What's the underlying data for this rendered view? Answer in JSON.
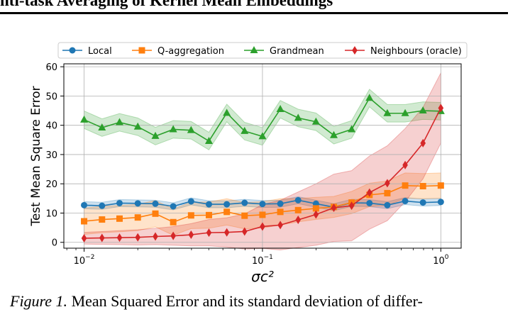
{
  "header": {
    "title": "nti-task Averaging of Kernel Mean Embeddings"
  },
  "caption": {
    "label": "Figure 1.",
    "text": "Mean Squared Error and its standard deviation of differ-"
  },
  "chart_data": {
    "type": "line",
    "title": "",
    "xlabel": "σc²",
    "ylabel": "Test Mean Square Error",
    "xscale": "log",
    "xlim": [
      0.0077,
      1.3
    ],
    "ylim": [
      -2,
      61
    ],
    "yticks": [
      0,
      10,
      20,
      30,
      40,
      50,
      60
    ],
    "xticks": [
      {
        "value": 0.01,
        "base": "10",
        "exp": "−2"
      },
      {
        "value": 0.1,
        "base": "10",
        "exp": "−1"
      },
      {
        "value": 1,
        "base": "10",
        "exp": "0"
      }
    ],
    "grid": true,
    "legend_position": "top",
    "x": [
      0.01,
      0.0126,
      0.0158,
      0.02,
      0.0251,
      0.0316,
      0.0398,
      0.0501,
      0.0631,
      0.0794,
      0.1,
      0.1259,
      0.1585,
      0.1995,
      0.2512,
      0.3162,
      0.3981,
      0.5012,
      0.631,
      0.7943,
      1.0
    ],
    "series": [
      {
        "name": "Local",
        "color": "#1f77b4",
        "marker": "circle",
        "values": [
          12.7,
          12.5,
          13.4,
          13.3,
          13.2,
          12.3,
          14.0,
          13.0,
          13.0,
          13.5,
          13.1,
          13.2,
          14.4,
          13.2,
          12.0,
          13.5,
          13.4,
          12.7,
          14.1,
          13.6,
          13.8
        ],
        "std": [
          1.2,
          1.2,
          1.2,
          1.2,
          1.2,
          1.2,
          1.2,
          1.2,
          1.2,
          1.2,
          1.2,
          1.2,
          1.2,
          1.2,
          1.2,
          1.2,
          1.2,
          1.2,
          1.2,
          1.2,
          1.2
        ]
      },
      {
        "name": "Q-aggregation",
        "color": "#ff7f0e",
        "marker": "square",
        "values": [
          7.2,
          7.8,
          8.1,
          8.5,
          9.8,
          6.9,
          9.2,
          9.3,
          10.4,
          9.1,
          9.4,
          10.4,
          11.0,
          11.6,
          12.1,
          13.6,
          16.2,
          16.8,
          19.4,
          19.2,
          19.4
        ],
        "std": [
          4.5,
          4.5,
          4.5,
          4.5,
          4.5,
          4.5,
          4.5,
          4.5,
          4.5,
          4.5,
          4.5,
          4.5,
          4.0,
          3.8,
          3.6,
          3.8,
          4.0,
          4.2,
          4.3,
          4.3,
          4.3
        ]
      },
      {
        "name": "Grandmean",
        "color": "#2ca02c",
        "marker": "triangle",
        "values": [
          41.9,
          39.2,
          41.0,
          39.5,
          36.3,
          38.6,
          38.3,
          34.6,
          44.2,
          38.0,
          36.2,
          45.5,
          42.5,
          41.2,
          36.6,
          38.6,
          49.3,
          44.1,
          44.1,
          45.0,
          44.8
        ],
        "std": [
          3.0,
          3.0,
          3.0,
          3.0,
          3.0,
          3.0,
          3.0,
          3.0,
          3.0,
          3.0,
          3.0,
          3.0,
          3.0,
          3.0,
          3.0,
          3.0,
          3.0,
          3.0,
          3.0,
          3.0,
          3.0
        ]
      },
      {
        "name": "Neighbours (oracle)",
        "color": "#d62728",
        "marker": "diamond",
        "values": [
          1.4,
          1.5,
          1.6,
          1.7,
          2.0,
          2.2,
          2.6,
          3.3,
          3.4,
          3.7,
          5.4,
          5.9,
          7.7,
          9.5,
          11.8,
          12.5,
          17.0,
          20.2,
          26.4,
          33.9,
          45.9
        ],
        "std": [
          2.0,
          2.2,
          2.4,
          2.6,
          2.8,
          3.2,
          3.8,
          4.5,
          5.0,
          6.0,
          7.5,
          8.5,
          9.5,
          10.5,
          11.5,
          12.0,
          12.5,
          12.8,
          12.5,
          12.2,
          12.0
        ]
      }
    ]
  }
}
